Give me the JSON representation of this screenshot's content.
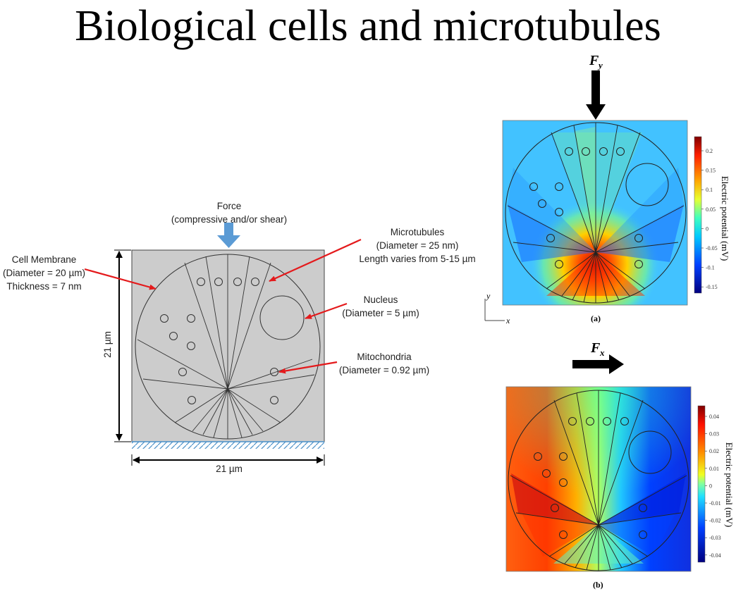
{
  "title": "Biological cells and microtubules",
  "schematic": {
    "force_label": "Force",
    "force_sub": "(compressive and/or shear)",
    "membrane": [
      "Cell Membrane",
      "(Diameter = 20 µm)",
      "Thickness = 7 nm"
    ],
    "microtubules": [
      "Microtubules",
      "(Diameter = 25 nm)",
      "Length varies from 5-15 µm"
    ],
    "nucleus": [
      "Nucleus",
      "(Diameter = 5 µm)"
    ],
    "mitochondria": [
      "Mitochondria",
      "(Diameter = 0.92 µm)"
    ],
    "dim_height": "21 µm",
    "dim_width": "21 µm",
    "colors": {
      "box": "#cccccc",
      "arrow": "#e41a1c",
      "force_arrow": "#5b9bd5",
      "support": "#4a90c8"
    }
  },
  "panel_a": {
    "force_label": "F",
    "force_sub": "y",
    "caption": "(a)",
    "axis_y": "y",
    "axis_x": "x",
    "colorbar_label": "Electric potential (mV)",
    "colorbar_ticks": [
      "0.2",
      "0.15",
      "0.1",
      "0.05",
      "0",
      "-0.05",
      "-0.1",
      "-0.15"
    ]
  },
  "panel_b": {
    "force_label": "F",
    "force_sub": "x",
    "caption": "(b)",
    "colorbar_label": "Electric potential (mV)",
    "colorbar_ticks": [
      "0.04",
      "0.03",
      "0.02",
      "0.01",
      "0",
      "-0.01",
      "-0.02",
      "-0.03",
      "-0.04"
    ]
  }
}
